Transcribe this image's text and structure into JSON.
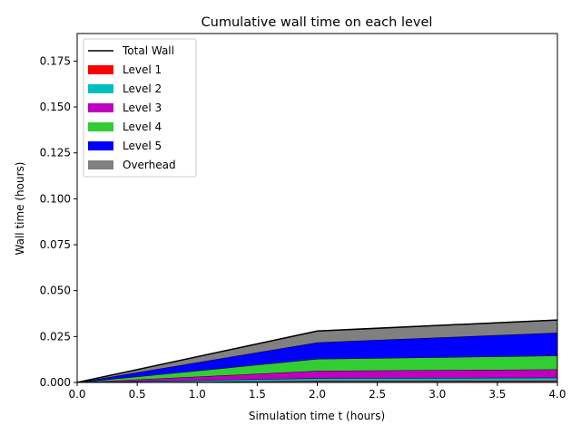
{
  "chart_data": {
    "type": "area",
    "title": "Cumulative wall time on each level",
    "xlabel": "Simulation time t (hours)",
    "ylabel": "Wall time (hours)",
    "xlim": [
      0,
      4
    ],
    "ylim": [
      0,
      0.19
    ],
    "x_ticks": [
      "0.0",
      "0.5",
      "1.0",
      "1.5",
      "2.0",
      "2.5",
      "3.0",
      "3.5",
      "4.0"
    ],
    "y_ticks": [
      "0.000",
      "0.025",
      "0.050",
      "0.075",
      "0.100",
      "0.125",
      "0.150",
      "0.175"
    ],
    "legend_position": "upper-left",
    "x": [
      0,
      2,
      4
    ],
    "series": [
      {
        "name": "Level 1",
        "color": "#ff0000",
        "values": [
          0,
          0.0008,
          0.0009
        ]
      },
      {
        "name": "Level 2",
        "color": "#00bfbf",
        "values": [
          0,
          0.0015,
          0.0017
        ]
      },
      {
        "name": "Level 3",
        "color": "#bf00bf",
        "values": [
          0,
          0.004,
          0.0045
        ]
      },
      {
        "name": "Level 4",
        "color": "#32cd32",
        "values": [
          0,
          0.0065,
          0.0075
        ]
      },
      {
        "name": "Level 5",
        "color": "#0000ff",
        "values": [
          0,
          0.009,
          0.0125
        ]
      },
      {
        "name": "Overhead",
        "color": "#808080",
        "values": [
          0,
          0.0062,
          0.0069
        ]
      }
    ],
    "total_line": {
      "name": "Total Wall",
      "color": "#000000",
      "values": [
        0,
        0.028,
        0.034
      ]
    }
  }
}
